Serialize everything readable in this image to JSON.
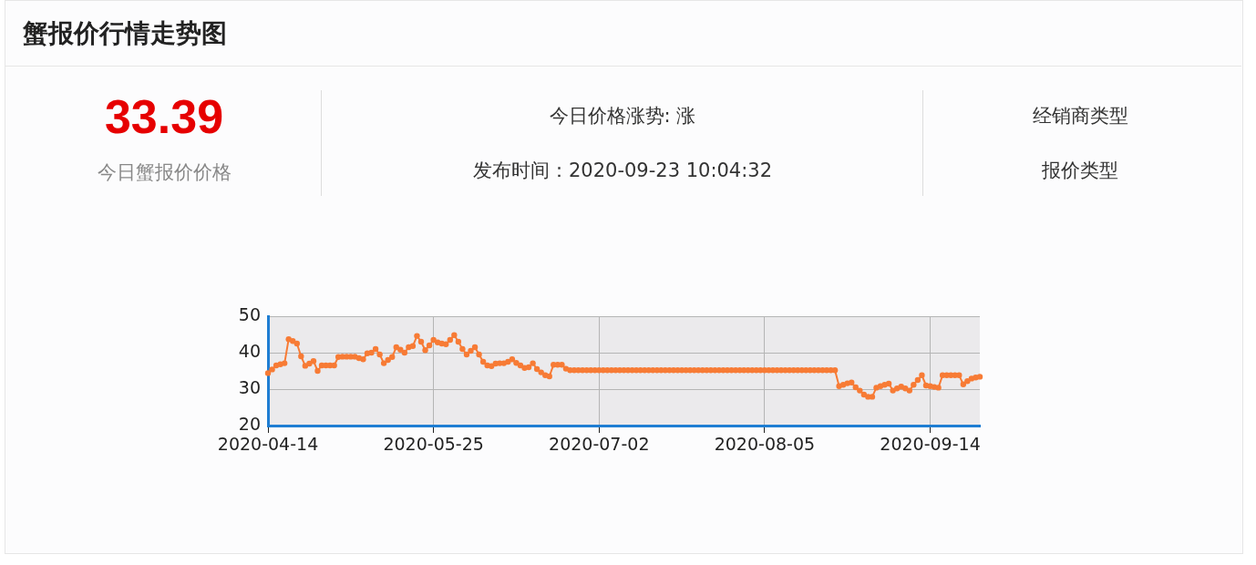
{
  "chart_data": {
    "type": "line",
    "title": "蟹报价行情走势图",
    "annotations": [
      "33.39",
      "今日蟹报价价格",
      "今日价格涨势: 涨",
      "发布时间：2020-09-23 10:04:32",
      "经销商类型",
      "报价类型"
    ],
    "categories": [
      "2020-04-14",
      null,
      null,
      null,
      null,
      null,
      null,
      null,
      null,
      null,
      null,
      null,
      null,
      null,
      null,
      null,
      null,
      null,
      null,
      null,
      null,
      null,
      null,
      null,
      null,
      null,
      null,
      null,
      null,
      null,
      null,
      null,
      null,
      null,
      null,
      null,
      null,
      null,
      null,
      null,
      "2020-05-25",
      null,
      null,
      null,
      null,
      null,
      null,
      null,
      null,
      null,
      null,
      null,
      null,
      null,
      null,
      null,
      null,
      null,
      null,
      null,
      null,
      null,
      null,
      null,
      null,
      null,
      null,
      null,
      null,
      null,
      null,
      null,
      null,
      null,
      null,
      null,
      null,
      null,
      null,
      null,
      "2020-07-02",
      null,
      null,
      null,
      null,
      null,
      null,
      null,
      null,
      null,
      null,
      null,
      null,
      null,
      null,
      null,
      null,
      null,
      null,
      null,
      null,
      null,
      null,
      null,
      null,
      null,
      null,
      null,
      null,
      null,
      null,
      null,
      null,
      null,
      null,
      null,
      null,
      null,
      null,
      null,
      "2020-08-05",
      null,
      null,
      null,
      null,
      null,
      null,
      null,
      null,
      null,
      null,
      null,
      null,
      null,
      null,
      null,
      null,
      null,
      null,
      null,
      null,
      null,
      null,
      null,
      null,
      null,
      null,
      null,
      null,
      null,
      null,
      null,
      null,
      null,
      null,
      null,
      null,
      null,
      null,
      null,
      "2020-09-14",
      null,
      null,
      null,
      null,
      null,
      null,
      null,
      null,
      null,
      null,
      null,
      null
    ],
    "series": [
      {
        "color": "#f77b35",
        "values": [
          34.4,
          35.4,
          36.5,
          36.8,
          37.1,
          43.7,
          43.2,
          42.5,
          39.0,
          36.4,
          37.0,
          37.7,
          35.0,
          36.5,
          36.5,
          36.5,
          36.5,
          38.8,
          38.9,
          38.9,
          38.9,
          38.9,
          38.5,
          38.2,
          39.8,
          40.0,
          41.0,
          39.5,
          37.1,
          38.0,
          38.8,
          41.5,
          40.8,
          40.0,
          41.5,
          41.8,
          44.6,
          43.0,
          40.7,
          42.0,
          43.5,
          42.8,
          42.5,
          42.3,
          43.5,
          44.8,
          43.0,
          41.0,
          39.5,
          40.5,
          41.5,
          39.5,
          37.5,
          36.5,
          36.3,
          37.0,
          37.1,
          37.1,
          37.5,
          38.2,
          37.2,
          36.5,
          35.8,
          36.0,
          37.1,
          35.5,
          34.6,
          33.8,
          33.5,
          36.7,
          36.7,
          36.7,
          35.6,
          35.2,
          35.2,
          35.2,
          35.2,
          35.2,
          35.2,
          35.2,
          35.2,
          35.2,
          35.2,
          35.2,
          35.2,
          35.2,
          35.2,
          35.2,
          35.2,
          35.2,
          35.2,
          35.2,
          35.2,
          35.2,
          35.2,
          35.2,
          35.2,
          35.2,
          35.2,
          35.2,
          35.2,
          35.2,
          35.2,
          35.2,
          35.2,
          35.2,
          35.2,
          35.2,
          35.2,
          35.2,
          35.2,
          35.2,
          35.2,
          35.2,
          35.2,
          35.2,
          35.2,
          35.2,
          35.2,
          35.2,
          35.2,
          35.2,
          35.2,
          35.2,
          35.2,
          35.2,
          35.2,
          35.2,
          35.2,
          35.2,
          35.2,
          35.2,
          35.2,
          35.2,
          35.2,
          35.2,
          35.2,
          35.2,
          30.8,
          31.2,
          31.6,
          31.8,
          30.5,
          29.6,
          28.5,
          27.9,
          27.9,
          30.4,
          30.8,
          31.2,
          31.5,
          29.6,
          30.2,
          30.7,
          30.2,
          29.6,
          31.2,
          32.5,
          33.8,
          31.0,
          30.8,
          30.6,
          30.4,
          33.8,
          33.8,
          33.8,
          33.8,
          33.8,
          31.3,
          32.2,
          32.9,
          33.2,
          33.4
        ]
      }
    ],
    "ylim": [
      20,
      50
    ],
    "yticks": [
      20,
      30,
      40,
      50
    ],
    "grid": true,
    "marker": "circle"
  }
}
